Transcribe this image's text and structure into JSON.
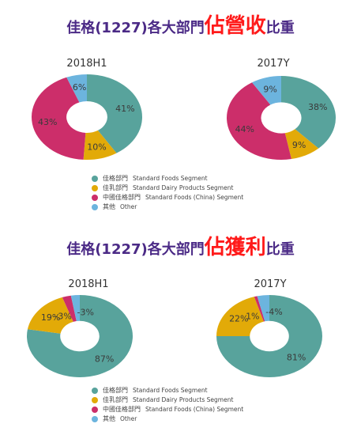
{
  "section1": {
    "title_pre": "佳格(1227)各大部門",
    "title_emph": "佔營收",
    "title_post": "比重"
  },
  "section2": {
    "title_pre": "佳格(1227)各大部門",
    "title_emph": "佔獲利",
    "title_post": "比重"
  },
  "legend": [
    {
      "zh": "佳格部門",
      "en": "Standard Foods Segment",
      "color": "#58a39c"
    },
    {
      "zh": "佳乳部門",
      "en": "Standard Dairy Products Segment",
      "color": "#e2aa08"
    },
    {
      "zh": "中國佳格部門",
      "en": "Standard Foods (China) Segment",
      "color": "#cc2e6a"
    },
    {
      "zh": "其他",
      "en": "Other",
      "color": "#6cb4de"
    }
  ],
  "chart_data": [
    {
      "type": "pie",
      "title": "2018H1",
      "group": "佔營收",
      "categories": [
        "佳格部門",
        "佳乳部門",
        "中國佳格部門",
        "其他"
      ],
      "values": [
        41,
        10,
        43,
        6
      ],
      "labels": [
        "41%",
        "10%",
        "43%",
        "6%"
      ]
    },
    {
      "type": "pie",
      "title": "2017Y",
      "group": "佔營收",
      "categories": [
        "佳格部門",
        "佳乳部門",
        "中國佳格部門",
        "其他"
      ],
      "values": [
        38,
        9,
        44,
        9
      ],
      "labels": [
        "38%",
        "9%",
        "44%",
        "9%"
      ]
    },
    {
      "type": "pie",
      "title": "2018H1",
      "group": "佔獲利",
      "categories": [
        "佳格部門",
        "佳乳部門",
        "中國佳格部門",
        "其他"
      ],
      "values": [
        87,
        19,
        -3,
        -3
      ],
      "labels": [
        "87%",
        "19%",
        "-3%",
        "-3%"
      ]
    },
    {
      "type": "pie",
      "title": "2017Y",
      "group": "佔獲利",
      "categories": [
        "佳格部門",
        "佳乳部門",
        "中國佳格部門",
        "其他"
      ],
      "values": [
        81,
        22,
        1,
        -4
      ],
      "labels": [
        "81%",
        "22%",
        "1%",
        "-4%"
      ]
    }
  ]
}
